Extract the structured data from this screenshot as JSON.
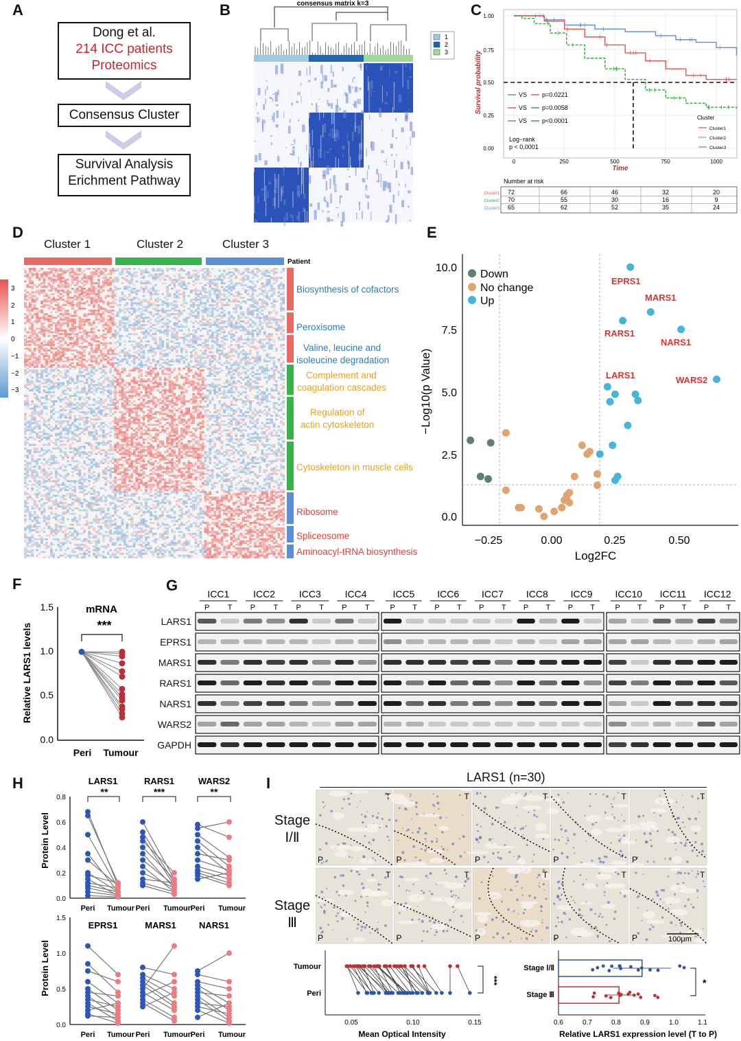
{
  "panels": {
    "A": {
      "label": "A",
      "box1": {
        "line1": "Dong et al.",
        "line2": "214 ICC patients",
        "line3": "Proteomics"
      },
      "box2": "Consensus Cluster",
      "box3": {
        "line1": "Survival Analysis",
        "line2": "Erichment Pathway"
      }
    },
    "B": {
      "label": "B",
      "title": "consensus matrix k=3",
      "legend": [
        "1",
        "2",
        "3"
      ],
      "colors": [
        "#9ecae1",
        "#2166ac",
        "#a1d99b"
      ]
    },
    "C": {
      "label": "C",
      "ylabel": "Survival probability",
      "xlabel": "Time",
      "yticks": [
        "1.00",
        "0.75",
        "0.50",
        "0.25",
        "0.00"
      ],
      "xticks": [
        "0",
        "250",
        "500",
        "750",
        "1000"
      ],
      "comparisons": [
        {
          "vs": "VS",
          "p": "p=0.0221"
        },
        {
          "vs": "VS",
          "p": "p=0.0058"
        },
        {
          "vs": "VS",
          "p": "p<0.0001"
        }
      ],
      "logrank": "Log−rank",
      "logrank_p": "p < 0.0001",
      "legend_title": "Cluster",
      "legend": [
        "Cluster1",
        "Cluster2",
        "Cluster3"
      ],
      "risk_title": "Number at risk",
      "risk_rows": [
        {
          "name": "Cluster1",
          "values": [
            "72",
            "66",
            "46",
            "32",
            "20"
          ]
        },
        {
          "name": "Cluster2",
          "values": [
            "70",
            "55",
            "30",
            "16",
            "9"
          ]
        },
        {
          "name": "Cluster3",
          "values": [
            "65",
            "62",
            "52",
            "35",
            "24"
          ]
        }
      ],
      "colors": {
        "c1": "#e8544e",
        "c2": "#2ea836",
        "c3": "#5b8fd4"
      }
    },
    "D": {
      "label": "D",
      "clusters": [
        "Cluster 1",
        "Cluster 2",
        "Cluster 3"
      ],
      "patient": "Patient",
      "scale": [
        "3",
        "2",
        "1",
        "0",
        "−1",
        "−2",
        "−3"
      ],
      "pathways": [
        {
          "text": "Biosynthesis of cofactors",
          "color": "#2b7bba"
        },
        {
          "text": "Peroxisome",
          "color": "#2b7bba"
        },
        {
          "text": "Valine, leucine and",
          "color": "#2b7bba"
        },
        {
          "text": "isoleucine degradation",
          "color": "#2b7bba"
        },
        {
          "text": "Complement and",
          "color": "#e8a020"
        },
        {
          "text": "coagulation cascades",
          "color": "#e8a020"
        },
        {
          "text": "Regulation of",
          "color": "#e8a020"
        },
        {
          "text": "actin cytoskeleton",
          "color": "#e8a020"
        },
        {
          "text": "Cytoskeleton in muscle cells",
          "color": "#e8a020"
        },
        {
          "text": "Ribosome",
          "color": "#e0403a"
        },
        {
          "text": "Spliceosome",
          "color": "#e0403a"
        },
        {
          "text": "Aminoacyl-tRNA biosynthesis",
          "color": "#e0403a"
        }
      ]
    },
    "E": {
      "label": "E",
      "legend": [
        "Down",
        "No change",
        "Up"
      ],
      "ylabel": "−Log10(p Value)",
      "xlabel": "Log2FC",
      "xticks": [
        "−0.25",
        "0.00",
        "0.25",
        "0.50"
      ],
      "yticks": [
        "10.0",
        "7.5",
        "5.0",
        "2.5",
        "0.0"
      ],
      "genes": [
        "EPRS1",
        "MARS1",
        "RARS1",
        "NARS1",
        "LARS1",
        "WARS2"
      ]
    },
    "F": {
      "label": "F",
      "title": "mRNA",
      "sig": "***",
      "ylabel": "Relative LARS1 levels",
      "yticks": [
        "1.5",
        "1.0",
        "0.5",
        "0.0"
      ],
      "xticks": [
        "Peri",
        "Tumour"
      ]
    },
    "G": {
      "label": "G",
      "samples": [
        "ICC1",
        "ICC2",
        "ICC3",
        "ICC4",
        "ICC5",
        "ICC6",
        "ICC7",
        "ICC8",
        "ICC9",
        "ICC10",
        "ICC11",
        "ICC12"
      ],
      "pt": [
        "P",
        "T"
      ],
      "proteins": [
        "LARS1",
        "EPRS1",
        "MARS1",
        "RARS1",
        "NARS1",
        "WARS2",
        "GAPDH"
      ]
    },
    "H": {
      "label": "H",
      "ylabel": "Protein Level",
      "top": [
        {
          "name": "LARS1",
          "sig": "**"
        },
        {
          "name": "RARS1",
          "sig": "***"
        },
        {
          "name": "WARS2",
          "sig": "**"
        }
      ],
      "bottom": [
        {
          "name": "EPRS1"
        },
        {
          "name": "MARS1"
        },
        {
          "name": "NARS1"
        }
      ],
      "top_yticks": [
        "0.8",
        "0.6",
        "0.4",
        "0.2",
        "0.0"
      ],
      "bottom_yticks": [
        "1.5",
        "1.0",
        "0.5",
        "0.0"
      ],
      "xticks": [
        "Peri",
        "Tumour"
      ]
    },
    "I": {
      "label": "I",
      "title": "LARS1 (n=30)",
      "stage1": "Stage",
      "stage1b": "Ⅰ/Ⅱ",
      "stage2": "Stage",
      "stage2b": "Ⅲ",
      "tile_t": "T",
      "tile_p": "P",
      "scalebar": "100μm",
      "moi_ylabels": [
        "Tumour",
        "Peri"
      ],
      "moi_xlabel": "Mean Optical Intensity",
      "moi_xticks": [
        "0.05",
        "0.10",
        "0.15"
      ],
      "moi_sig": "***",
      "bar_ylabels": [
        "Stage Ⅰ/Ⅱ",
        "Stage Ⅲ"
      ],
      "bar_xlabel": "Relative LARS1 expression level (T to P)",
      "bar_xticks": [
        "0.6",
        "0.7",
        "0.8",
        "0.9",
        "1.0",
        "1.1"
      ],
      "bar_sig": "*"
    }
  }
}
